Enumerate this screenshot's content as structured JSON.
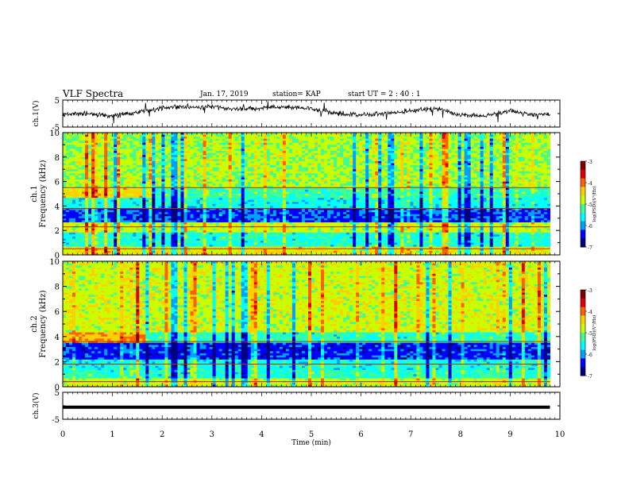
{
  "header": {
    "title": "VLF Spectra",
    "date": "Jan. 17, 2019",
    "station": "station= KAP",
    "start_ut": "start  UT =  2 : 40 : 1"
  },
  "chart_data": [
    {
      "type": "line",
      "panel": "ch1-waveform",
      "ylabel": "ch.1(V)",
      "ylim": [
        -5,
        5
      ],
      "yticks": [
        5,
        -5
      ],
      "xlim": [
        0,
        10
      ],
      "data_extent_min": 9.8,
      "x": [
        0.0,
        0.5,
        1.0,
        1.5,
        2.0,
        2.5,
        3.0,
        3.5,
        4.0,
        4.5,
        5.0,
        5.5,
        6.0,
        6.5,
        7.0,
        7.5,
        8.0,
        8.5,
        9.0,
        9.5,
        9.8
      ],
      "values": [
        -0.5,
        0.2,
        -1.0,
        0.5,
        2.2,
        2.5,
        2.5,
        1.5,
        2.0,
        2.4,
        1.7,
        0.2,
        -0.4,
        0.0,
        1.0,
        2.0,
        -0.5,
        -1.0,
        1.0,
        -0.5,
        -0.3
      ]
    },
    {
      "type": "heatmap",
      "panel": "ch1-spectrogram",
      "ylabel": "ch.1\nFrequency (kHz)",
      "ylim": [
        0,
        10
      ],
      "yticks": [
        0,
        2,
        4,
        6,
        8,
        10
      ],
      "xlim": [
        0,
        10
      ],
      "colorbar": {
        "label": "log(PSD)(V²/Hz)",
        "ticks": [
          -3,
          -4,
          -5,
          -6,
          -7
        ],
        "range": [
          -7,
          -3
        ]
      }
    },
    {
      "type": "heatmap",
      "panel": "ch2-spectrogram",
      "ylabel": "ch.2\nFrequency (kHz)",
      "ylim": [
        0,
        10
      ],
      "yticks": [
        0,
        2,
        4,
        6,
        8,
        10
      ],
      "xlim": [
        0,
        10
      ],
      "colorbar": {
        "label": "log(PSD)(V²/Hz)",
        "ticks": [
          -3,
          -4,
          -5,
          -6,
          -7
        ],
        "range": [
          -7,
          -3
        ]
      }
    },
    {
      "type": "line",
      "panel": "ch3-waveform",
      "ylabel": "ch.3(V)",
      "ylim": [
        -5,
        5
      ],
      "yticks": [
        5,
        -5
      ],
      "xlim": [
        0,
        10
      ],
      "x": [
        0,
        9.8
      ],
      "values": [
        -0.5,
        -0.5
      ]
    }
  ],
  "x_axis": {
    "label": "Time (min)",
    "ticks": [
      "0",
      "1",
      "2",
      "3",
      "4",
      "5",
      "6",
      "7",
      "8",
      "9",
      "10"
    ]
  },
  "colors": {
    "colormap": [
      "#00007f",
      "#0000ff",
      "#00a0ff",
      "#00ffff",
      "#40ff90",
      "#c8ff00",
      "#ffd000",
      "#ff6000",
      "#e00000",
      "#800000"
    ],
    "foreground": "#000000",
    "background": "#ffffff"
  }
}
